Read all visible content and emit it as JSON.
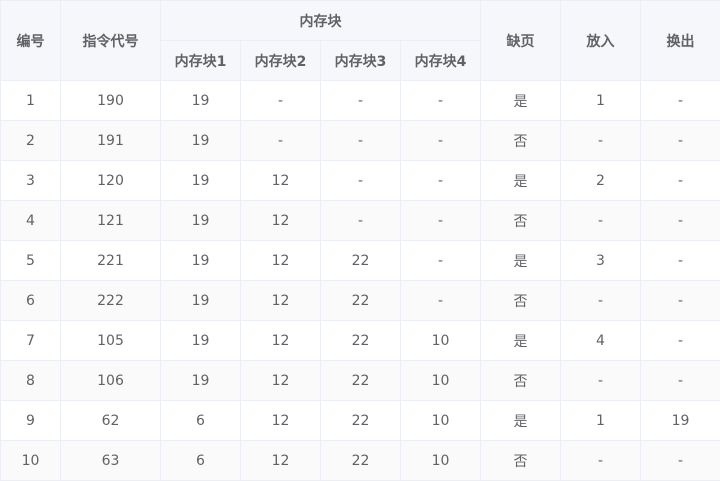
{
  "table": {
    "headers": {
      "id": "编号",
      "instr": "指令代号",
      "mem_group": "内存块",
      "mem1": "内存块1",
      "mem2": "内存块2",
      "mem3": "内存块3",
      "mem4": "内存块4",
      "fault": "缺页",
      "in": "放入",
      "out": "换出"
    },
    "rows": [
      [
        "1",
        "190",
        "19",
        "-",
        "-",
        "-",
        "是",
        "1",
        "-"
      ],
      [
        "2",
        "191",
        "19",
        "-",
        "-",
        "-",
        "否",
        "-",
        "-"
      ],
      [
        "3",
        "120",
        "19",
        "12",
        "-",
        "-",
        "是",
        "2",
        "-"
      ],
      [
        "4",
        "121",
        "19",
        "12",
        "-",
        "-",
        "否",
        "-",
        "-"
      ],
      [
        "5",
        "221",
        "19",
        "12",
        "22",
        "-",
        "是",
        "3",
        "-"
      ],
      [
        "6",
        "222",
        "19",
        "12",
        "22",
        "-",
        "否",
        "-",
        "-"
      ],
      [
        "7",
        "105",
        "19",
        "12",
        "22",
        "10",
        "是",
        "4",
        "-"
      ],
      [
        "8",
        "106",
        "19",
        "12",
        "22",
        "10",
        "否",
        "-",
        "-"
      ],
      [
        "9",
        "62",
        "6",
        "12",
        "22",
        "10",
        "是",
        "1",
        "19"
      ],
      [
        "10",
        "63",
        "6",
        "12",
        "22",
        "10",
        "否",
        "-",
        "-"
      ]
    ]
  }
}
